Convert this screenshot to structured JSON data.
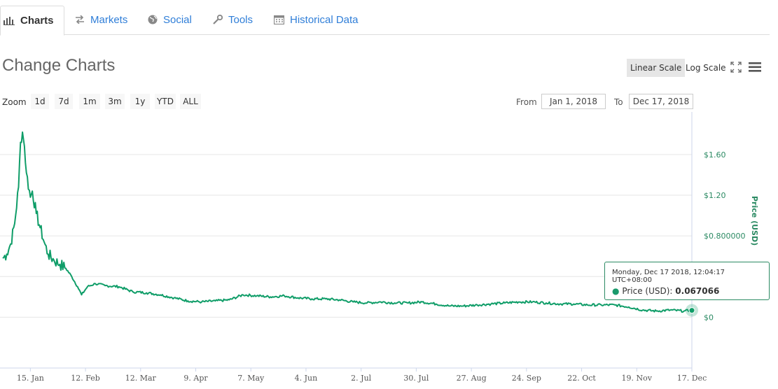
{
  "tabs": [
    {
      "label": "Charts",
      "icon": "bar-chart-icon",
      "active": true
    },
    {
      "label": "Markets",
      "icon": "exchange-icon",
      "active": false
    },
    {
      "label": "Social",
      "icon": "globe-icon",
      "active": false
    },
    {
      "label": "Tools",
      "icon": "wrench-icon",
      "active": false
    },
    {
      "label": "Historical Data",
      "icon": "calendar-icon",
      "active": false
    }
  ],
  "title": "Change Charts",
  "scale": {
    "linear": "Linear Scale",
    "log": "Log Scale",
    "active": "Linear Scale"
  },
  "zoom": {
    "label": "Zoom",
    "options": [
      "1d",
      "7d",
      "1m",
      "3m",
      "1y",
      "YTD",
      "ALL"
    ]
  },
  "range": {
    "from_label": "From",
    "from_value": "Jan 1, 2018",
    "to_label": "To",
    "to_value": "Dec 17, 2018"
  },
  "tooltip": {
    "date": "Monday, Dec 17 2018, 12:04:17 UTC+08:00",
    "series": "Price (USD):",
    "value": "0.067066"
  },
  "colors": {
    "line": "#0f9d68",
    "accent": "#2f7ed8",
    "axis_text": "#2b8a63"
  },
  "chart_data": {
    "type": "line",
    "ylabel": "Price (USD)",
    "y_ticks": [
      {
        "value": 0,
        "label": "$0"
      },
      {
        "value": 0.4,
        "label": ""
      },
      {
        "value": 0.8,
        "label": "$0.800000"
      },
      {
        "value": 1.2,
        "label": "$1.20"
      },
      {
        "value": 1.6,
        "label": "$1.60"
      }
    ],
    "ylim": [
      -0.5,
      1.95
    ],
    "x_ticks": [
      "15. Jan",
      "12. Feb",
      "12. Mar",
      "9. Apr",
      "7. May",
      "4. Jun",
      "2. Jul",
      "30. Jul",
      "27. Aug",
      "24. Sep",
      "22. Oct",
      "19. Nov",
      "17. Dec"
    ],
    "x_tick_dates": [
      "2018-01-15",
      "2018-02-12",
      "2018-03-12",
      "2018-04-09",
      "2018-05-07",
      "2018-06-04",
      "2018-07-02",
      "2018-07-30",
      "2018-08-27",
      "2018-09-24",
      "2018-10-22",
      "2018-11-19",
      "2018-12-17"
    ],
    "x_start": "2018-01-01",
    "x_end": "2018-12-17",
    "grid": true,
    "series": [
      {
        "name": "Price (USD)",
        "points": [
          [
            "2018-01-01",
            0.58
          ],
          [
            "2018-01-03",
            0.62
          ],
          [
            "2018-01-05",
            0.72
          ],
          [
            "2018-01-07",
            0.92
          ],
          [
            "2018-01-09",
            1.28
          ],
          [
            "2018-01-10",
            1.72
          ],
          [
            "2018-01-11",
            1.82
          ],
          [
            "2018-01-12",
            1.68
          ],
          [
            "2018-01-13",
            1.42
          ],
          [
            "2018-01-15",
            1.18
          ],
          [
            "2018-01-16",
            1.24
          ],
          [
            "2018-01-18",
            1.02
          ],
          [
            "2018-01-20",
            0.88
          ],
          [
            "2018-01-22",
            0.74
          ],
          [
            "2018-01-24",
            0.62
          ],
          [
            "2018-01-27",
            0.56
          ],
          [
            "2018-01-30",
            0.52
          ],
          [
            "2018-02-02",
            0.48
          ],
          [
            "2018-02-05",
            0.4
          ],
          [
            "2018-02-08",
            0.3
          ],
          [
            "2018-02-10",
            0.22
          ],
          [
            "2018-02-13",
            0.3
          ],
          [
            "2018-02-17",
            0.33
          ],
          [
            "2018-02-22",
            0.31
          ],
          [
            "2018-03-01",
            0.3
          ],
          [
            "2018-03-08",
            0.25
          ],
          [
            "2018-03-15",
            0.24
          ],
          [
            "2018-03-22",
            0.22
          ],
          [
            "2018-03-29",
            0.19
          ],
          [
            "2018-04-05",
            0.16
          ],
          [
            "2018-04-12",
            0.15
          ],
          [
            "2018-04-19",
            0.16
          ],
          [
            "2018-04-26",
            0.17
          ],
          [
            "2018-05-03",
            0.22
          ],
          [
            "2018-05-10",
            0.21
          ],
          [
            "2018-05-17",
            0.2
          ],
          [
            "2018-05-24",
            0.21
          ],
          [
            "2018-05-31",
            0.19
          ],
          [
            "2018-06-07",
            0.18
          ],
          [
            "2018-06-14",
            0.18
          ],
          [
            "2018-06-21",
            0.17
          ],
          [
            "2018-06-28",
            0.15
          ],
          [
            "2018-07-05",
            0.14
          ],
          [
            "2018-07-12",
            0.15
          ],
          [
            "2018-07-19",
            0.14
          ],
          [
            "2018-07-26",
            0.14
          ],
          [
            "2018-08-02",
            0.15
          ],
          [
            "2018-08-09",
            0.13
          ],
          [
            "2018-08-16",
            0.11
          ],
          [
            "2018-08-23",
            0.11
          ],
          [
            "2018-08-30",
            0.12
          ],
          [
            "2018-09-06",
            0.13
          ],
          [
            "2018-09-13",
            0.14
          ],
          [
            "2018-09-20",
            0.15
          ],
          [
            "2018-09-27",
            0.15
          ],
          [
            "2018-10-04",
            0.14
          ],
          [
            "2018-10-11",
            0.13
          ],
          [
            "2018-10-18",
            0.13
          ],
          [
            "2018-10-25",
            0.12
          ],
          [
            "2018-11-01",
            0.12
          ],
          [
            "2018-11-08",
            0.12
          ],
          [
            "2018-11-15",
            0.1
          ],
          [
            "2018-11-22",
            0.07
          ],
          [
            "2018-11-29",
            0.06
          ],
          [
            "2018-12-06",
            0.07
          ],
          [
            "2018-12-13",
            0.06
          ],
          [
            "2018-12-17",
            0.067066
          ]
        ]
      }
    ]
  }
}
